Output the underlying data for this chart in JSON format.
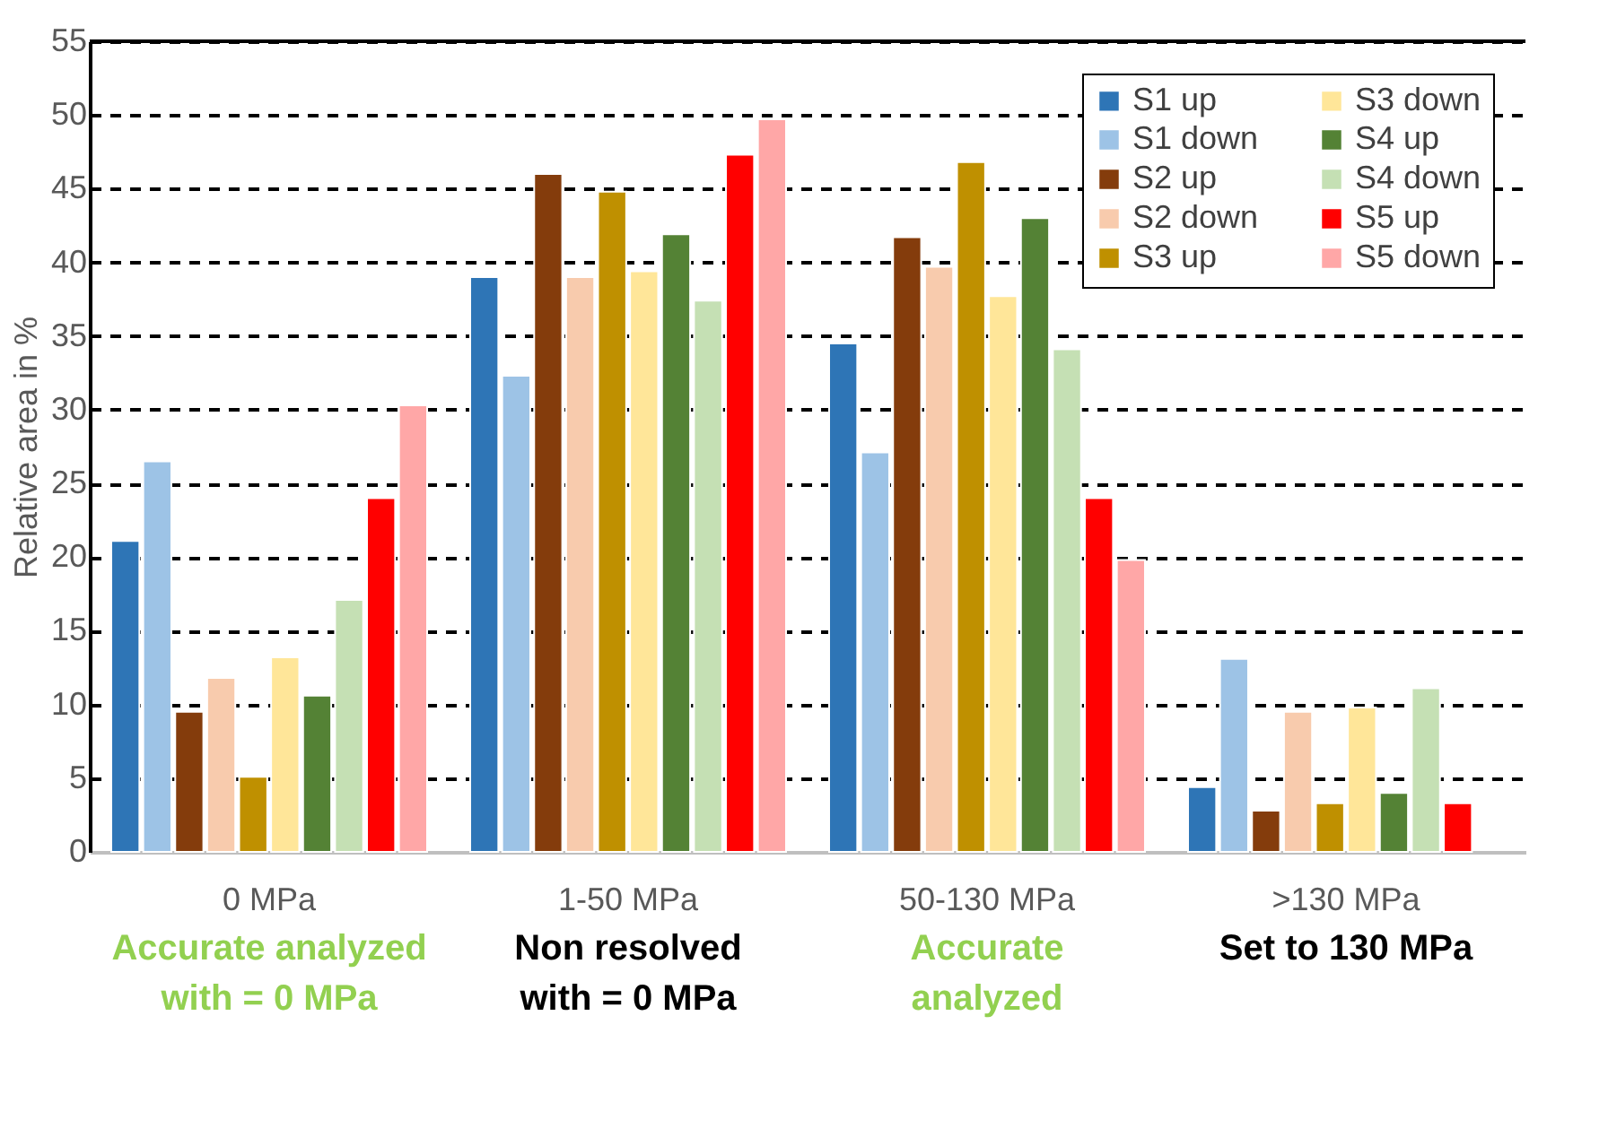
{
  "chart_data": {
    "type": "bar",
    "ylabel": "Relative area in %",
    "categories": [
      "0 MPa",
      "1-50 MPa",
      "50-130 MPa",
      ">130 MPa"
    ],
    "series": [
      {
        "name": "S1 up",
        "color": "#2e75b6",
        "values": [
          21.1,
          39.0,
          34.5,
          4.4
        ]
      },
      {
        "name": "S1 down",
        "color": "#9dc3e6",
        "values": [
          26.5,
          32.3,
          27.1,
          13.1
        ]
      },
      {
        "name": "S2 up",
        "color": "#843c0c",
        "values": [
          9.5,
          46.0,
          41.7,
          2.8
        ]
      },
      {
        "name": "S2 down",
        "color": "#f8cbad",
        "values": [
          11.8,
          39.0,
          39.7,
          9.5
        ]
      },
      {
        "name": "S3 up",
        "color": "#bf9000",
        "values": [
          5.1,
          44.8,
          46.8,
          3.3
        ]
      },
      {
        "name": "S3 down",
        "color": "#ffe699",
        "values": [
          13.2,
          39.4,
          37.7,
          9.8
        ]
      },
      {
        "name": "S4 up",
        "color": "#548235",
        "values": [
          10.6,
          41.9,
          43.0,
          4.0
        ]
      },
      {
        "name": "S4 down",
        "color": "#c5e0b4",
        "values": [
          17.1,
          37.4,
          34.1,
          11.1
        ]
      },
      {
        "name": "S5 up",
        "color": "#ff0000",
        "values": [
          24.0,
          47.3,
          24.0,
          3.3
        ]
      },
      {
        "name": "S5 down",
        "color": "#ffa7a7",
        "values": [
          30.3,
          49.7,
          19.8,
          null
        ]
      }
    ],
    "ylim": [
      0,
      55
    ],
    "yticks": [
      0,
      5,
      10,
      15,
      20,
      25,
      30,
      35,
      40,
      45,
      50,
      55
    ],
    "grid": "y",
    "legend": "top right",
    "annotations": [
      "Accurate analyzed\nwith = 0 MPa",
      "Non resolved\nwith = 0 MPa",
      "Accurate\nanalyzed",
      "Set to 130 MPa"
    ]
  }
}
